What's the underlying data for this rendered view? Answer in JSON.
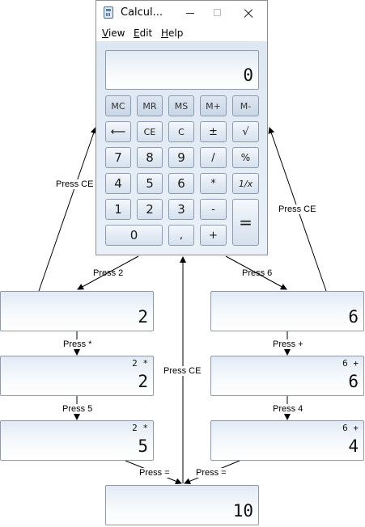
{
  "window": {
    "title": "Calcul...",
    "menu": [
      "View",
      "Edit",
      "Help"
    ],
    "display": "0",
    "keys": {
      "row1": [
        "MC",
        "MR",
        "MS",
        "M+",
        "M-"
      ],
      "row2": [
        "⟵",
        "CE",
        "C",
        "±",
        "√"
      ],
      "row3": [
        "7",
        "8",
        "9",
        "/",
        "%"
      ],
      "row4": [
        "4",
        "5",
        "6",
        "*",
        "1/x"
      ],
      "row5": [
        "1",
        "2",
        "3",
        "-"
      ],
      "row6": [
        "0",
        ",",
        "+"
      ],
      "equals": "="
    }
  },
  "states": {
    "s2": {
      "expr": "",
      "value": "2"
    },
    "s6": {
      "expr": "",
      "value": "6"
    },
    "s2mul": {
      "expr": "2 *",
      "value": "2"
    },
    "s6add": {
      "expr": "6 +",
      "value": "6"
    },
    "s2mul5": {
      "expr": "2 *",
      "value": "5"
    },
    "s6add4": {
      "expr": "6 +",
      "value": "4"
    },
    "result": {
      "expr": "",
      "value": "10"
    }
  },
  "transitions": {
    "press2": "Press 2",
    "press6": "Press 6",
    "pressMul": "Press *",
    "pressAdd": "Press +",
    "press5": "Press 5",
    "press4": "Press 4",
    "pressEqLeft": "Press =",
    "pressEqRight": "Press =",
    "pressCeLeft": "Press CE",
    "pressCeRight": "Press CE",
    "pressCeCenter": "Press CE"
  },
  "colors": {
    "arrow": "#000000",
    "display_border": "#8e9aaa",
    "key_border": "#8a9bb1"
  }
}
